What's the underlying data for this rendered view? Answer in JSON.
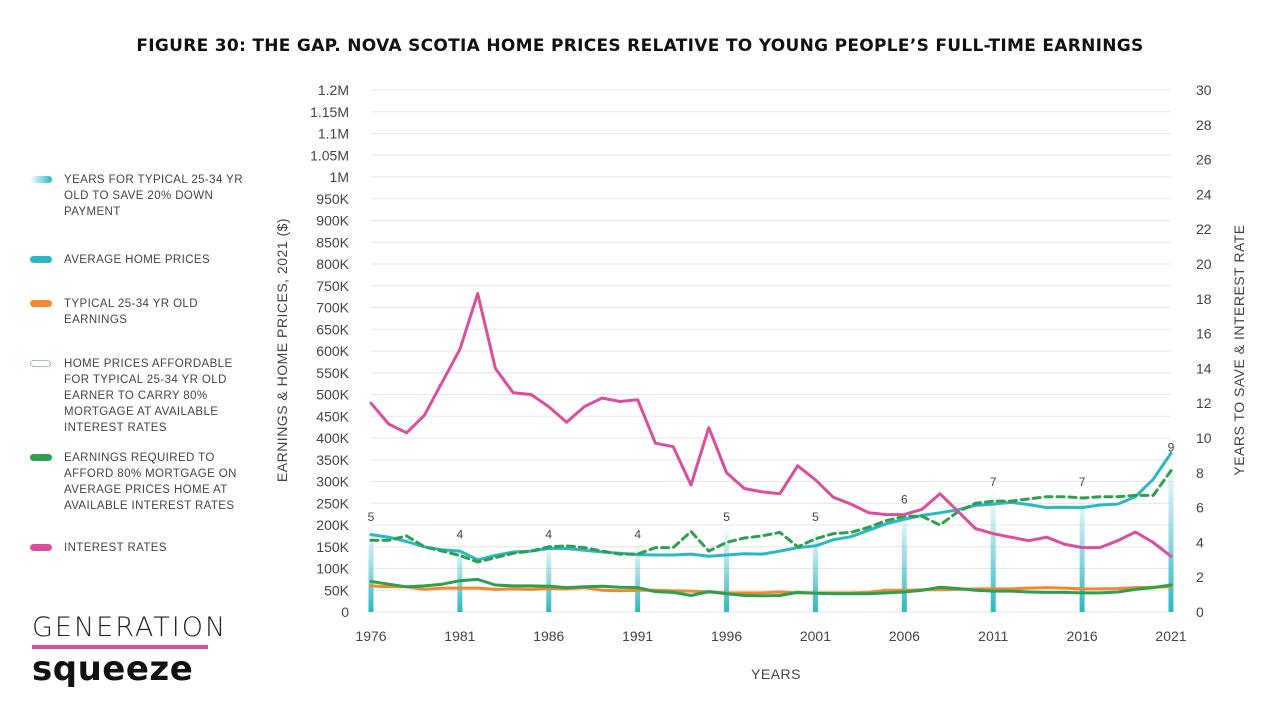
{
  "title": "FIGURE 30: THE GAP. NOVA SCOTIA HOME PRICES RELATIVE TO YOUNG PEOPLE’S FULL-TIME EARNINGS",
  "legend": [
    {
      "label": "YEARS FOR TYPICAL 25-34 YR OLD TO SAVE 20% DOWN PAYMENT",
      "color": "#2bb8c4",
      "style": "gradient"
    },
    {
      "label": "AVERAGE HOME PRICES",
      "color": "#2bb8c4",
      "style": "solid"
    },
    {
      "label": "TYPICAL 25-34 YR OLD EARNINGS",
      "color": "#f08a2e",
      "style": "solid"
    },
    {
      "label": "HOME PRICES AFFORDABLE FOR TYPICAL 25-34 YR OLD EARNER TO CARRY 80% MORTGAGE AT AVAILABLE INTEREST RATES",
      "color": "#2e9e4f",
      "style": "dotted"
    },
    {
      "label": "EARNINGS REQUIRED TO AFFORD 80% MORTGAGE ON AVERAGE PRICES HOME AT AVAILABLE INTEREST RATES",
      "color": "#2e9e4f",
      "style": "solid"
    },
    {
      "label": "INTEREST RATES",
      "color": "#d94f9e",
      "style": "solid"
    }
  ],
  "logo": {
    "top": "GENERATION",
    "bottom": "squeeze"
  },
  "chart_data": {
    "type": "line",
    "title": "FIGURE 30: THE GAP. NOVA SCOTIA HOME PRICES RELATIVE TO YOUNG PEOPLE’S FULL-TIME EARNINGS",
    "xlabel": "YEARS",
    "ylabel": "EARNINGS & HOME PRICES, 2021 ($)",
    "y2label": "YEARS TO SAVE & INTEREST RATE",
    "x_ticks": [
      "1976",
      "1981",
      "1986",
      "1991",
      "1996",
      "2001",
      "2006",
      "2011",
      "2016",
      "2021"
    ],
    "y_ticks": [
      "0",
      "50K",
      "100K",
      "150K",
      "200K",
      "250K",
      "300K",
      "350K",
      "400K",
      "450K",
      "500K",
      "550K",
      "600K",
      "650K",
      "700K",
      "750K",
      "800K",
      "850K",
      "900K",
      "950K",
      "1M",
      "1.05M",
      "1.1M",
      "1.15M",
      "1.2M"
    ],
    "y2_ticks": [
      "0",
      "2",
      "4",
      "6",
      "8",
      "10",
      "12",
      "14",
      "16",
      "18",
      "20",
      "22",
      "24",
      "26",
      "28",
      "30"
    ],
    "ylim": [
      0,
      1200000
    ],
    "y2lim": [
      0,
      30
    ],
    "xlim": [
      1976,
      2021
    ],
    "grid": true,
    "x": [
      1976,
      1977,
      1978,
      1979,
      1980,
      1981,
      1982,
      1983,
      1984,
      1985,
      1986,
      1987,
      1988,
      1989,
      1990,
      1991,
      1992,
      1993,
      1994,
      1995,
      1996,
      1997,
      1998,
      1999,
      2000,
      2001,
      2002,
      2003,
      2004,
      2005,
      2006,
      2007,
      2008,
      2009,
      2010,
      2011,
      2012,
      2013,
      2014,
      2015,
      2016,
      2017,
      2018,
      2019,
      2020,
      2021
    ],
    "series": [
      {
        "name": "AVERAGE HOME PRICES",
        "axis": "left",
        "color": "#2bb8c4",
        "dash": "solid",
        "values": [
          178000,
          172000,
          162000,
          150000,
          143000,
          140000,
          120000,
          130000,
          138000,
          140000,
          146000,
          146000,
          142000,
          138000,
          135000,
          132000,
          131000,
          131000,
          133000,
          128000,
          131000,
          134000,
          133000,
          140000,
          148000,
          152000,
          166000,
          173000,
          188000,
          203000,
          213000,
          222000,
          228000,
          235000,
          245000,
          248000,
          252000,
          247000,
          240000,
          241000,
          240000,
          246000,
          248000,
          265000,
          305000,
          365000
        ]
      },
      {
        "name": "TYPICAL 25-34 YR OLD EARNINGS",
        "axis": "left",
        "color": "#f08a2e",
        "dash": "solid",
        "values": [
          60000,
          58000,
          58000,
          52000,
          55000,
          55000,
          55000,
          52000,
          53000,
          52000,
          54000,
          53000,
          56000,
          50000,
          49000,
          50000,
          50000,
          49000,
          48000,
          46000,
          44000,
          44000,
          44000,
          46000,
          44000,
          44000,
          44000,
          44000,
          45000,
          50000,
          50000,
          51000,
          51000,
          52000,
          53000,
          53000,
          53000,
          55000,
          56000,
          55000,
          53000,
          53000,
          54000,
          56000,
          57000,
          58000
        ]
      },
      {
        "name": "HOME PRICES AFFORDABLE FOR TYPICAL 25-34 YR OLD EARNER TO CARRY 80% MORTGAGE AT AVAILABLE INTEREST RATES",
        "axis": "left",
        "color": "#2e9e4f",
        "dash": "dashed",
        "values": [
          165000,
          165000,
          175000,
          150000,
          140000,
          130000,
          115000,
          125000,
          135000,
          140000,
          150000,
          152000,
          148000,
          140000,
          133000,
          133000,
          148000,
          148000,
          185000,
          140000,
          160000,
          170000,
          175000,
          183000,
          150000,
          168000,
          180000,
          183000,
          195000,
          210000,
          220000,
          220000,
          200000,
          230000,
          250000,
          255000,
          255000,
          260000,
          265000,
          265000,
          262000,
          265000,
          265000,
          268000,
          268000,
          325000
        ]
      },
      {
        "name": "EARNINGS REQUIRED TO AFFORD 80% MORTGAGE ON AVERAGE PRICES HOME AT AVAILABLE INTEREST RATES",
        "axis": "left",
        "color": "#2e9e4f",
        "dash": "solid",
        "values": [
          70000,
          64000,
          58000,
          60000,
          64000,
          72000,
          75000,
          62000,
          60000,
          60000,
          59000,
          56000,
          58000,
          59000,
          57000,
          56000,
          47000,
          45000,
          38000,
          47000,
          42000,
          38000,
          37000,
          38000,
          45000,
          43000,
          42000,
          42000,
          42000,
          44000,
          46000,
          50000,
          57000,
          54000,
          50000,
          48000,
          48000,
          46000,
          45000,
          45000,
          44000,
          44000,
          46000,
          52000,
          56000,
          62000
        ]
      },
      {
        "name": "INTEREST RATES",
        "axis": "right",
        "color": "#d94f9e",
        "dash": "solid",
        "values": [
          12.0,
          10.8,
          10.3,
          11.3,
          13.2,
          15.1,
          18.3,
          14.0,
          12.6,
          12.5,
          11.8,
          10.9,
          11.8,
          12.3,
          12.1,
          12.2,
          9.7,
          9.5,
          7.3,
          10.6,
          8.0,
          7.1,
          6.9,
          6.8,
          8.4,
          7.6,
          6.6,
          6.2,
          5.7,
          5.6,
          5.6,
          5.9,
          6.8,
          5.8,
          4.8,
          4.5,
          4.3,
          4.1,
          4.3,
          3.9,
          3.7,
          3.7,
          4.1,
          4.6,
          4.0,
          3.2
        ]
      }
    ],
    "bars": {
      "name": "YEARS FOR TYPICAL 25-34 YR OLD TO SAVE 20% DOWN PAYMENT",
      "axis": "right",
      "color": "#2bb8c4",
      "x": [
        1976,
        1981,
        1986,
        1991,
        1996,
        2001,
        2006,
        2011,
        2016,
        2021
      ],
      "values": [
        5,
        4,
        4,
        4,
        5,
        5,
        6,
        7,
        7,
        9
      ],
      "labels": [
        "5",
        "4",
        "4",
        "4",
        "5",
        "5",
        "6",
        "7",
        "7",
        "9"
      ]
    }
  }
}
